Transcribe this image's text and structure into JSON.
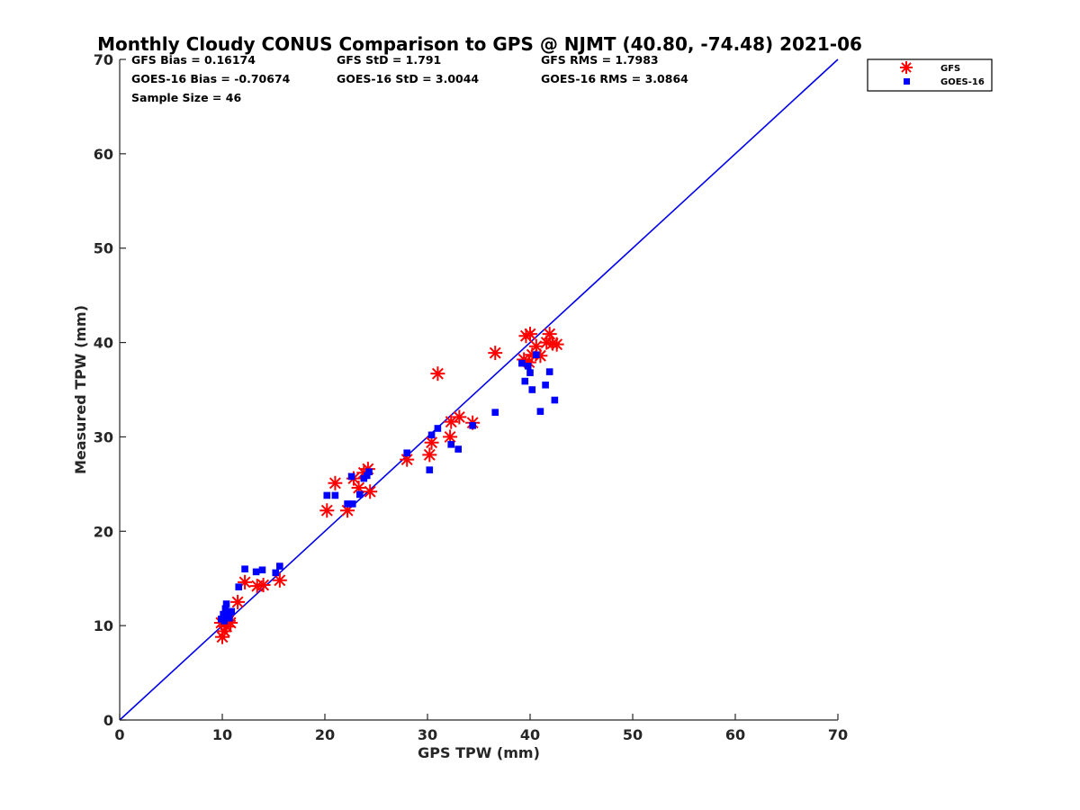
{
  "chart_data": {
    "type": "scatter",
    "title": "Monthly Cloudy CONUS Comparison to GPS @ NJMT (40.80, -74.48) 2021-06",
    "xlabel": "GPS TPW (mm)",
    "ylabel": "Measured TPW (mm)",
    "xlim": [
      0,
      70
    ],
    "ylim": [
      0,
      70
    ],
    "xticks": [
      "0",
      "10",
      "20",
      "30",
      "40",
      "50",
      "60",
      "70"
    ],
    "yticks": [
      "0",
      "10",
      "20",
      "30",
      "40",
      "50",
      "60",
      "70"
    ],
    "grid": false,
    "legend_position": "top-right outside",
    "reference_line": {
      "x": [
        0,
        70
      ],
      "y": [
        0,
        70
      ],
      "color": "#0000ee"
    },
    "stats": {
      "gfs_bias": "GFS Bias = 0.16174",
      "goes_bias": "GOES-16 Bias = -0.70674",
      "sample_size": "Sample Size = 46",
      "gfs_std": "GFS StD = 1.791",
      "goes_std": "GOES-16 StD = 3.0044",
      "gfs_rms": "GFS RMS = 1.7983",
      "goes_rms": "GOES-16 RMS = 3.0864"
    },
    "series": [
      {
        "name": "GFS",
        "marker": "asterisk",
        "color": "#ff0000",
        "points": [
          [
            9.9,
            10.3
          ],
          [
            10.0,
            8.8
          ],
          [
            10.2,
            9.4
          ],
          [
            10.4,
            9.9
          ],
          [
            10.6,
            10.5
          ],
          [
            10.8,
            10.3
          ],
          [
            11.5,
            12.5
          ],
          [
            12.2,
            14.6
          ],
          [
            13.4,
            14.2
          ],
          [
            14.0,
            14.3
          ],
          [
            15.6,
            14.8
          ],
          [
            20.2,
            22.2
          ],
          [
            21.0,
            25.1
          ],
          [
            22.2,
            22.2
          ],
          [
            22.8,
            25.6
          ],
          [
            23.3,
            24.6
          ],
          [
            23.8,
            26.2
          ],
          [
            24.2,
            26.6
          ],
          [
            24.4,
            24.2
          ],
          [
            28.0,
            27.6
          ],
          [
            30.2,
            28.1
          ],
          [
            30.4,
            29.4
          ],
          [
            31.0,
            36.7
          ],
          [
            32.2,
            30.0
          ],
          [
            32.3,
            31.6
          ],
          [
            33.1,
            32.1
          ],
          [
            34.4,
            31.5
          ],
          [
            36.6,
            38.9
          ],
          [
            39.4,
            38.2
          ],
          [
            39.6,
            40.7
          ],
          [
            40.0,
            40.9
          ],
          [
            39.9,
            37.9
          ],
          [
            40.2,
            38.7
          ],
          [
            40.6,
            39.6
          ],
          [
            41.0,
            38.6
          ],
          [
            41.6,
            40.0
          ],
          [
            41.9,
            40.9
          ],
          [
            42.2,
            39.9
          ],
          [
            42.6,
            39.8
          ]
        ]
      },
      {
        "name": "GOES-16",
        "marker": "square",
        "color": "#0000ff",
        "points": [
          [
            9.9,
            10.7
          ],
          [
            10.1,
            11.2
          ],
          [
            10.2,
            10.5
          ],
          [
            10.3,
            11.8
          ],
          [
            10.4,
            12.3
          ],
          [
            10.6,
            11.5
          ],
          [
            10.7,
            10.8
          ],
          [
            10.9,
            11.5
          ],
          [
            11.6,
            14.1
          ],
          [
            12.2,
            16.0
          ],
          [
            13.3,
            15.7
          ],
          [
            13.9,
            15.9
          ],
          [
            15.2,
            15.6
          ],
          [
            15.6,
            16.3
          ],
          [
            20.2,
            23.8
          ],
          [
            21.0,
            23.8
          ],
          [
            22.2,
            22.9
          ],
          [
            22.6,
            25.8
          ],
          [
            22.7,
            22.9
          ],
          [
            23.4,
            23.9
          ],
          [
            23.8,
            25.6
          ],
          [
            24.1,
            25.9
          ],
          [
            24.3,
            26.3
          ],
          [
            28.0,
            28.3
          ],
          [
            30.2,
            26.5
          ],
          [
            30.4,
            30.2
          ],
          [
            31.0,
            30.9
          ],
          [
            32.3,
            29.2
          ],
          [
            33.0,
            28.7
          ],
          [
            34.4,
            31.2
          ],
          [
            36.6,
            32.6
          ],
          [
            39.2,
            37.8
          ],
          [
            39.5,
            35.9
          ],
          [
            39.8,
            37.5
          ],
          [
            40.0,
            36.8
          ],
          [
            40.2,
            35.0
          ],
          [
            40.6,
            38.7
          ],
          [
            41.0,
            32.7
          ],
          [
            41.5,
            35.5
          ],
          [
            41.9,
            36.9
          ],
          [
            42.4,
            33.9
          ]
        ]
      }
    ]
  }
}
